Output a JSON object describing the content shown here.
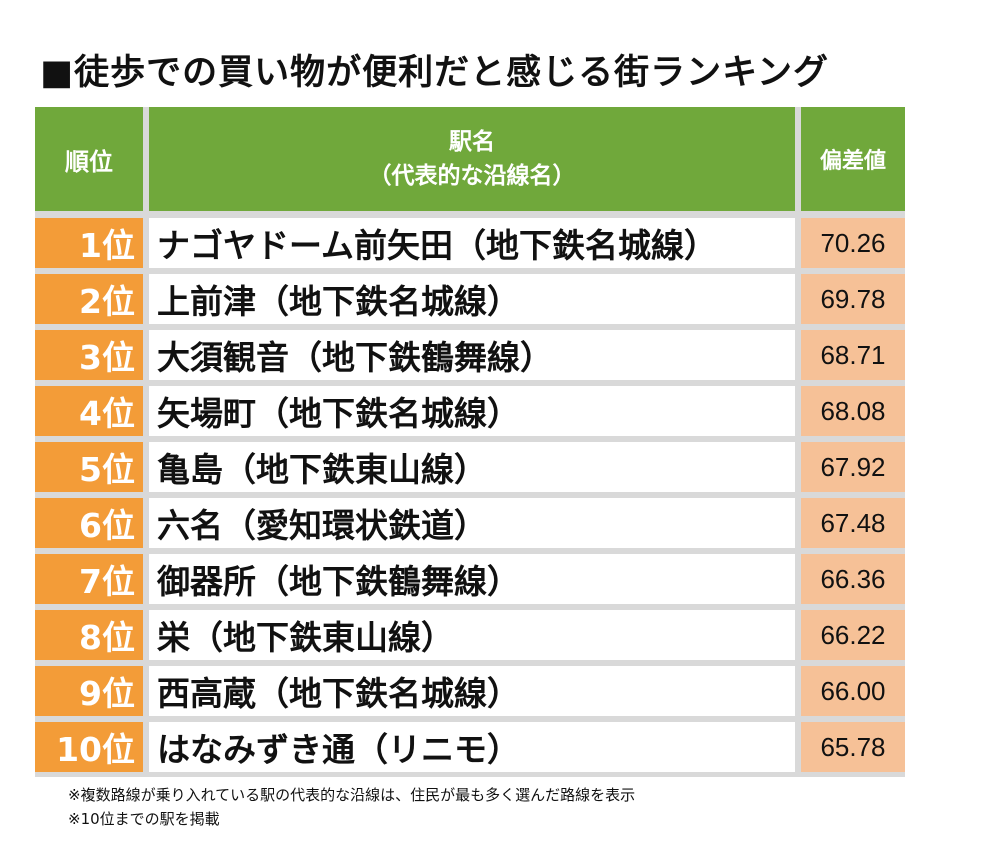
{
  "title": "■徒歩での買い物が便利だと感じる街ランキング",
  "header": {
    "rank": "順位",
    "station_line1": "駅名",
    "station_line2": "（代表的な沿線名）",
    "score": "偏差値"
  },
  "rows": [
    {
      "rank": "1位",
      "station": "ナゴヤドーム前矢田（地下鉄名城線）",
      "score": "70.26"
    },
    {
      "rank": "2位",
      "station": "上前津（地下鉄名城線）",
      "score": "69.78"
    },
    {
      "rank": "3位",
      "station": "大須観音（地下鉄鶴舞線）",
      "score": "68.71"
    },
    {
      "rank": "4位",
      "station": "矢場町（地下鉄名城線）",
      "score": "68.08"
    },
    {
      "rank": "5位",
      "station": "亀島（地下鉄東山線）",
      "score": "67.92"
    },
    {
      "rank": "6位",
      "station": "六名（愛知環状鉄道）",
      "score": "67.48"
    },
    {
      "rank": "7位",
      "station": "御器所（地下鉄鶴舞線）",
      "score": "66.36"
    },
    {
      "rank": "8位",
      "station": "栄（地下鉄東山線）",
      "score": "66.22"
    },
    {
      "rank": "9位",
      "station": "西高蔵（地下鉄名城線）",
      "score": "66.00"
    },
    {
      "rank": "10位",
      "station": "はなみずき通（リニモ）",
      "score": "65.78"
    }
  ],
  "notes": [
    "※複数路線が乗り入れている駅の代表的な沿線は、住民が最も多く選んだ路線を表示",
    "※10位までの駅を掲載"
  ],
  "colors": {
    "header_bg": "#70a83b",
    "rank_bg": "#f39c38",
    "score_bg": "#f6c197",
    "grid": "#d9d9d9"
  }
}
